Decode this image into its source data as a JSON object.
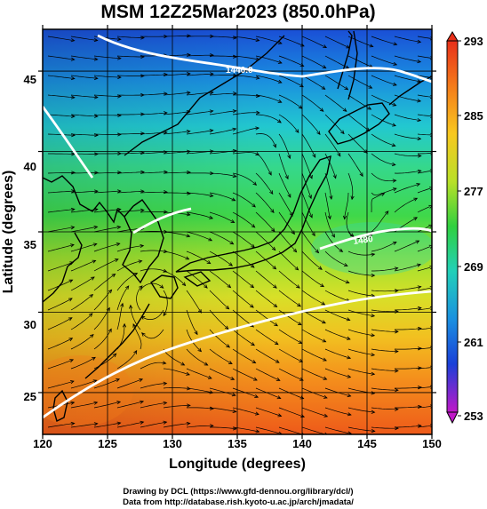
{
  "title": "MSM 12Z25Mar2023 (850.0hPa)",
  "xlabel": "Longitude (degrees)",
  "ylabel": "Latitude  (degrees)",
  "x_ticks": [
    "120",
    "125",
    "130",
    "135",
    "140",
    "145",
    "150"
  ],
  "y_ticks": [
    "25",
    "30",
    "35",
    "40",
    "45"
  ],
  "colorbar_ticks": [
    "293",
    "285",
    "277",
    "269",
    "261",
    "253"
  ],
  "contour_labels": [
    "1440.0",
    "1480"
  ],
  "credits": {
    "line1": "Drawing by DCL (https://www.gfd-dennou.org/library/dcl/)",
    "line2": "Data from http://database.rish.kyoto-u.ac.jp/arch/jmadata/"
  },
  "chart_data": {
    "type": "heatmap",
    "title": "MSM 12Z25Mar2023 (850.0hPa)",
    "xlabel": "Longitude (degrees)",
    "ylabel": "Latitude  (degrees)",
    "xlim": [
      120,
      150
    ],
    "ylim": [
      22.4,
      47.6
    ],
    "colorbar": {
      "min": 253,
      "max": 293,
      "ticks": [
        293,
        285,
        277,
        269,
        261,
        253
      ]
    },
    "grid": true,
    "overlays": [
      "coastlines",
      "streamlines",
      "geopotential height contours (white)"
    ]
  }
}
